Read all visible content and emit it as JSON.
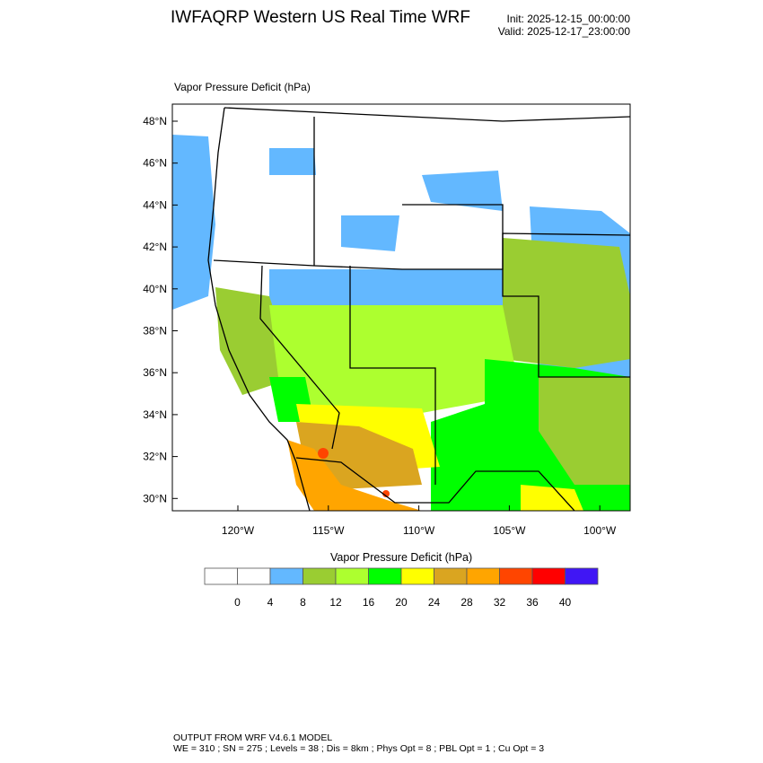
{
  "header": {
    "title": "IWFAQRP Western US Real Time WRF",
    "init": "Init: 2025-12-15_00:00:00",
    "valid": "Valid: 2025-12-17_23:00:00"
  },
  "plot_subtitle": "Vapor Pressure Deficit   (hPa)",
  "footer": {
    "line1": "OUTPUT FROM WRF V4.6.1 MODEL",
    "line2": "WE = 310 ; SN = 275 ; Levels = 38 ; Dis = 8km ; Phys Opt = 8 ; PBL Opt = 1 ; Cu Opt = 3"
  },
  "chart_data": {
    "type": "heatmap",
    "title": "Vapor Pressure Deficit   (hPa)",
    "lat_ticks": [
      "48°N",
      "46°N",
      "44°N",
      "42°N",
      "40°N",
      "38°N",
      "36°N",
      "34°N",
      "32°N",
      "30°N"
    ],
    "lon_ticks": [
      "120°W",
      "115°W",
      "110°W",
      "105°W",
      "100°W"
    ],
    "colorbar": {
      "title": "Vapor Pressure Deficit  (hPa)",
      "labels": [
        "0",
        "4",
        "8",
        "12",
        "16",
        "20",
        "24",
        "28",
        "32",
        "36",
        "40"
      ],
      "colors": [
        "#ffffff",
        "#ffffff",
        "#63b8ff",
        "#9acd32",
        "#adff2f",
        "#00ff00",
        "#ffff00",
        "#daa520",
        "#ffa500",
        "#ff4500",
        "#ff0000",
        "#4016f5"
      ]
    }
  }
}
